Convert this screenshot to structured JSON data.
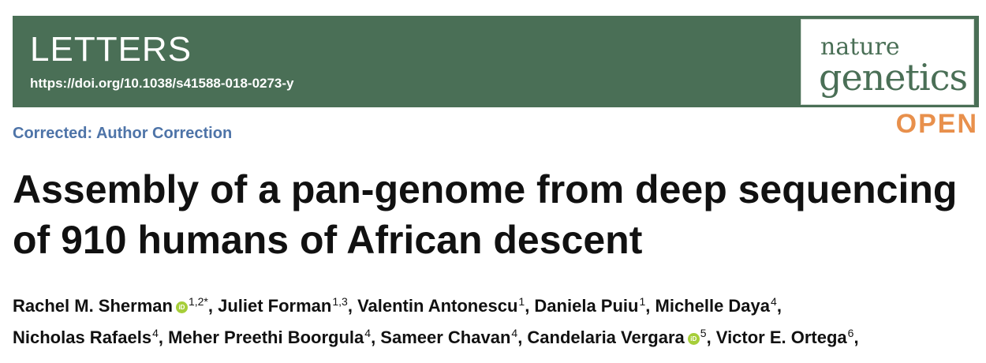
{
  "header": {
    "section_label": "LETTERS",
    "doi": "https://doi.org/10.1038/s41588-018-0273-y",
    "journal_logo_top": "nature",
    "journal_logo_bottom": "genetics",
    "access_badge": "OPEN",
    "banner_color": "#4a6f56",
    "open_color": "#e8904c"
  },
  "correction_notice": "Corrected: Author Correction",
  "title_line1": "Assembly of a pan-genome from deep sequencing",
  "title_line2": "of 910 humans of African descent",
  "authors": [
    {
      "name": "Rachel M. Sherman",
      "orcid": true,
      "sup": "1,2*"
    },
    {
      "name": "Juliet Forman",
      "orcid": false,
      "sup": "1,3"
    },
    {
      "name": "Valentin Antonescu",
      "orcid": false,
      "sup": "1"
    },
    {
      "name": "Daniela Puiu",
      "orcid": false,
      "sup": "1"
    },
    {
      "name": "Michelle Daya",
      "orcid": false,
      "sup": "4"
    },
    {
      "name": "Nicholas Rafaels",
      "orcid": false,
      "sup": "4"
    },
    {
      "name": "Meher Preethi Boorgula",
      "orcid": false,
      "sup": "4"
    },
    {
      "name": "Sameer Chavan",
      "orcid": false,
      "sup": "4"
    },
    {
      "name": "Candelaria Vergara",
      "orcid": true,
      "sup": "5"
    },
    {
      "name": "Victor E. Ortega",
      "orcid": false,
      "sup": "6"
    }
  ],
  "orcid_icon_label": "iD"
}
